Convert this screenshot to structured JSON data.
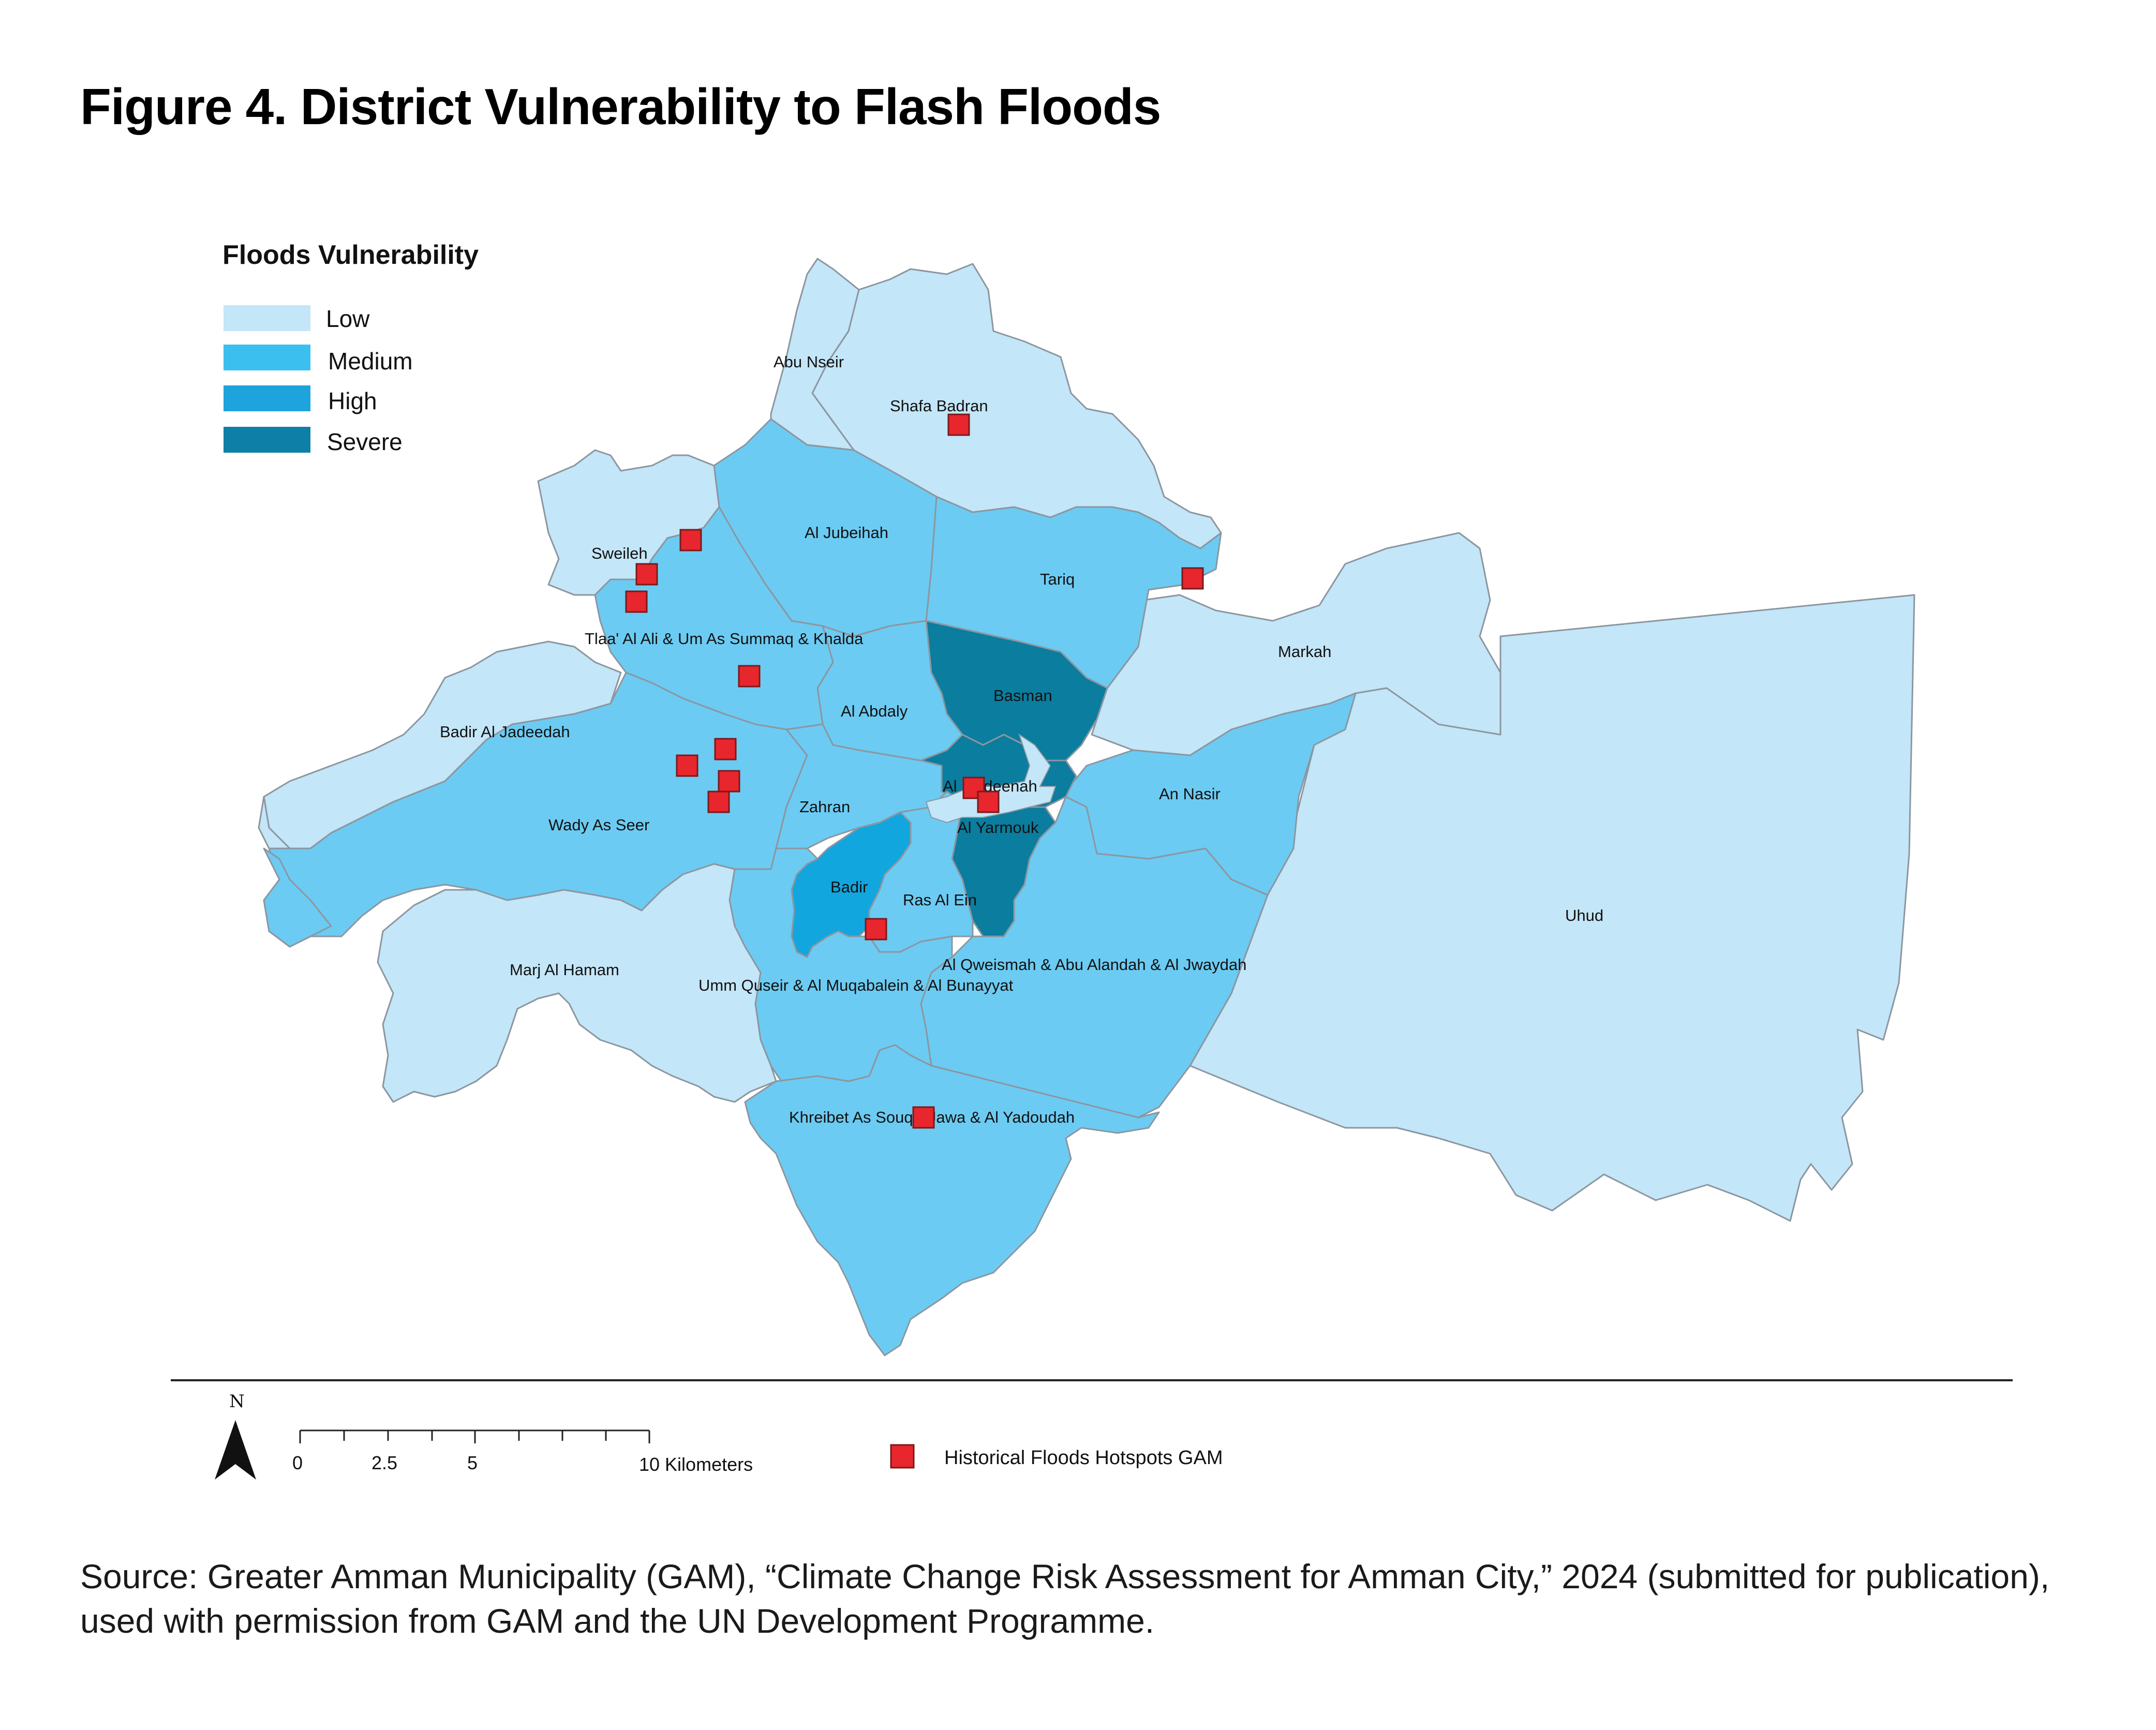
{
  "figure": {
    "title": "Figure 4. District Vulnerability to Flash Floods"
  },
  "legend": {
    "title": "Floods Vulnerability",
    "classes": [
      {
        "label": "Low",
        "color": "#c3e6f8"
      },
      {
        "label": "Medium",
        "color": "#3bbfee"
      },
      {
        "label": "High",
        "color": "#1fa3dc"
      },
      {
        "label": "Severe",
        "color": "#0e7fa6"
      }
    ],
    "map_fills": {
      "low": "#c3e6f8",
      "medium": "#6ccbf2",
      "high": "#12a6de",
      "severe": "#0b7d9e"
    }
  },
  "districts": [
    {
      "name": "Abu Nseir",
      "vulnerability": "Low"
    },
    {
      "name": "Shafa Badran",
      "vulnerability": "Low"
    },
    {
      "name": "Al  Jubeihah",
      "vulnerability": "Medium"
    },
    {
      "name": "Tariq",
      "vulnerability": "Medium"
    },
    {
      "name": "Sweileh",
      "vulnerability": "Low"
    },
    {
      "name": "Tlaa' Al  Ali & Um As  Summaq & Khalda",
      "vulnerability": "Medium"
    },
    {
      "name": "Markah",
      "vulnerability": "Low"
    },
    {
      "name": "Basman",
      "vulnerability": "Severe"
    },
    {
      "name": "Al   Abdaly",
      "vulnerability": "Medium"
    },
    {
      "name": "Badir Al  Jadeedah",
      "vulnerability": "Low"
    },
    {
      "name": "An  Nasir",
      "vulnerability": "Medium"
    },
    {
      "name": "Al  Madeenah",
      "vulnerability": "Severe"
    },
    {
      "name": "Zahran",
      "vulnerability": "Medium"
    },
    {
      "name": "Wady As  Seer",
      "vulnerability": "Medium"
    },
    {
      "name": "Al  Yarmouk",
      "vulnerability": "Severe"
    },
    {
      "name": "Badir",
      "vulnerability": "High"
    },
    {
      "name": "Ras Al   Ein",
      "vulnerability": "Medium"
    },
    {
      "name": "Uhud",
      "vulnerability": "Low"
    },
    {
      "name": "Al  Qweismah & Abu Alandah & Al  Jwaydah",
      "vulnerability": "Medium"
    },
    {
      "name": "Marj Al  Hamam",
      "vulnerability": "Low"
    },
    {
      "name": "Umm Quseir & Al  Muqabalein & Al  Bunayyat",
      "vulnerability": "Medium"
    },
    {
      "name": "Khreibet As  Souq &Jawa & Al  Yadoudah",
      "vulnerability": "Medium"
    }
  ],
  "hotspots": {
    "label": "Historical  Floods  Hotspots  GAM",
    "color": "#e8262d",
    "count": 14
  },
  "scale_bar": {
    "ticks": [
      "0",
      "2.5",
      "5",
      "10 Kilometers"
    ]
  },
  "north_arrow": {
    "label": "N"
  },
  "source": "Source: Greater Amman Municipality (GAM), “Climate Change Risk Assessment for Amman City,” 2024 (submitted for publication), used with permission from GAM and the UN Development Programme."
}
